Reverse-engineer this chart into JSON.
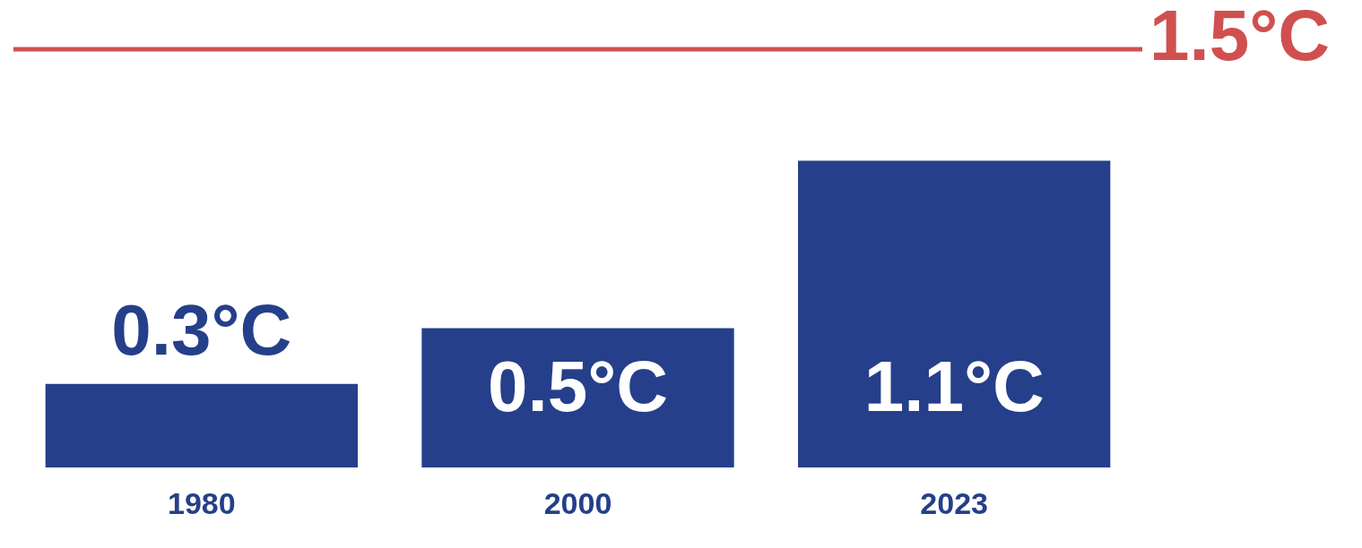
{
  "chart_data": {
    "type": "bar",
    "categories": [
      "1980",
      "2000",
      "2023"
    ],
    "values": [
      0.3,
      0.5,
      1.1
    ],
    "value_labels": [
      "0.3°C",
      "0.5°C",
      "1.1°C"
    ],
    "color": "#253f8a",
    "ref_lines": [
      {
        "axis": "y",
        "value": 1.5,
        "label": "1.5°C",
        "color": "#d0504f"
      }
    ],
    "grid": false,
    "legend": false,
    "tick_labels": "x"
  }
}
